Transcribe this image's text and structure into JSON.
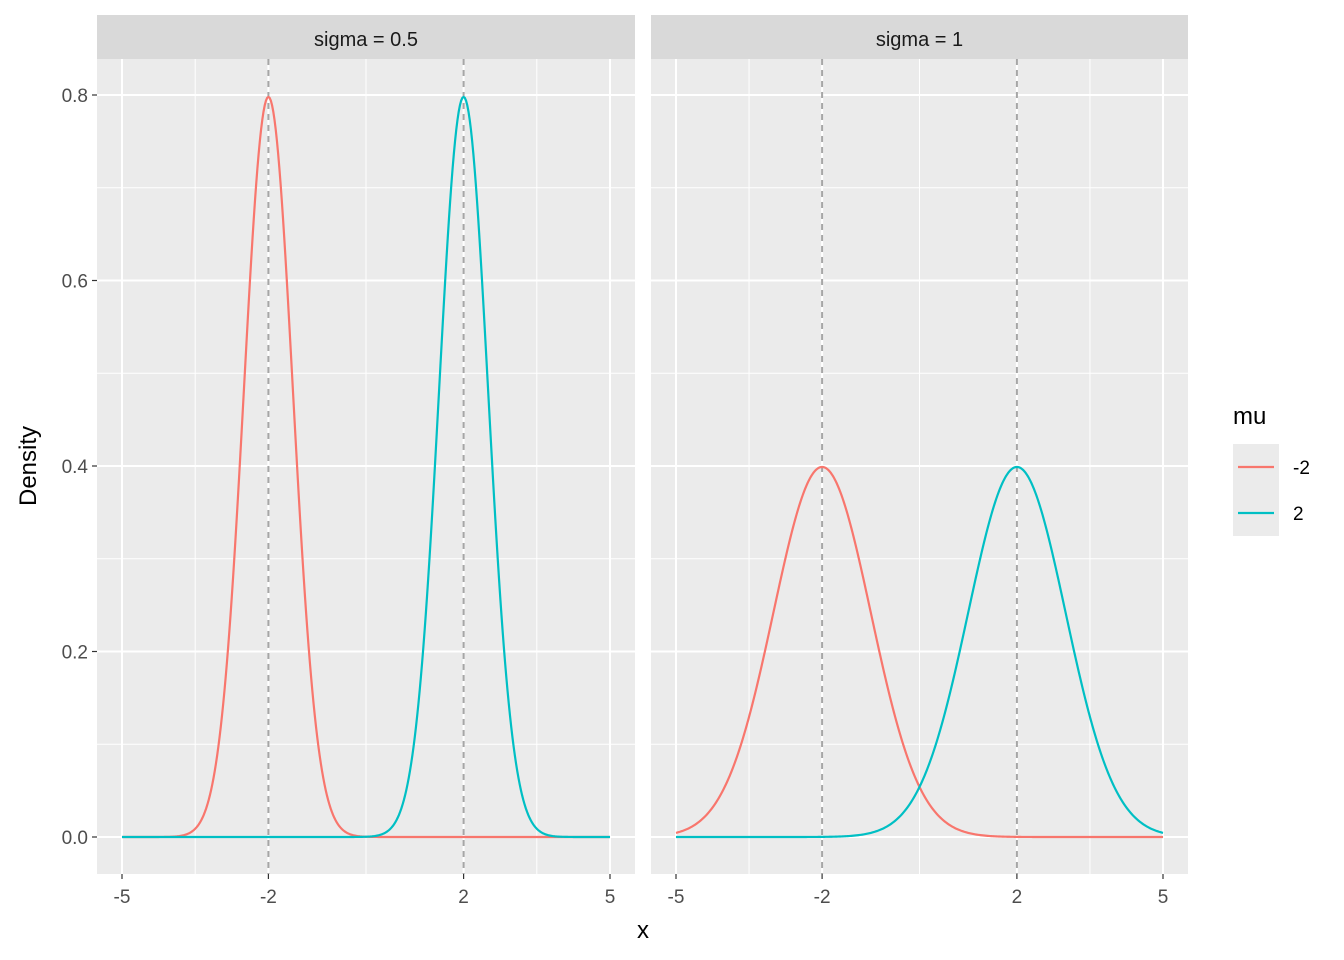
{
  "chart_data": {
    "type": "line",
    "xlabel": "x",
    "ylabel": "Density",
    "xlim": [
      -5,
      5
    ],
    "ylim": [
      0,
      0.8
    ],
    "x_breaks": [
      -5,
      -2,
      2,
      5
    ],
    "x_tick_labels": [
      "-5",
      "-2",
      "2",
      "5"
    ],
    "y_breaks": [
      0,
      0.2,
      0.4,
      0.6,
      0.8
    ],
    "y_tick_labels": [
      "0.0",
      "0.2",
      "0.4",
      "0.6",
      "0.8"
    ],
    "grid": true,
    "reference_lines_x": [
      -2,
      2
    ],
    "legend": {
      "title": "mu",
      "position": "right",
      "entries": [
        {
          "label": "-2",
          "color": "#F8766D"
        },
        {
          "label": "2",
          "color": "#00BFC4"
        }
      ]
    },
    "facets": [
      {
        "strip": "sigma = 0.5",
        "sigma": 0.5,
        "series": [
          {
            "mu": -2,
            "color": "#F8766D"
          },
          {
            "mu": 2,
            "color": "#00BFC4"
          }
        ]
      },
      {
        "strip": "sigma = 1",
        "sigma": 1,
        "series": [
          {
            "mu": -2,
            "color": "#F8766D"
          },
          {
            "mu": 2,
            "color": "#00BFC4"
          }
        ]
      }
    ]
  }
}
